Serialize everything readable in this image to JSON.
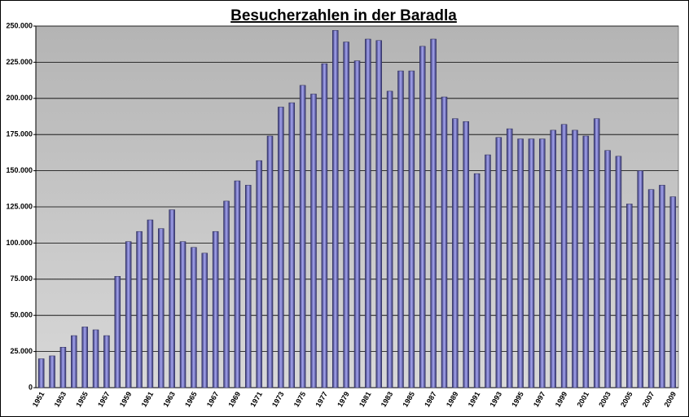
{
  "chart_data": {
    "type": "bar",
    "title": "Besucherzahlen in der Baradla",
    "categories": [
      "1951",
      null,
      "1953",
      null,
      "1955",
      null,
      "1957",
      null,
      "1959",
      null,
      "1961",
      null,
      "1963",
      null,
      "1965",
      null,
      "1967",
      null,
      "1969",
      null,
      "1971",
      null,
      "1973",
      null,
      "1975",
      null,
      "1977",
      null,
      "1979",
      null,
      "1981",
      null,
      "1983",
      null,
      "1985",
      null,
      "1987",
      null,
      "1989",
      null,
      "1991",
      null,
      "1993",
      null,
      "1995",
      null,
      "1997",
      null,
      "1999",
      null,
      "2001",
      null,
      "2003",
      null,
      "2005",
      null,
      "2007",
      null,
      "2009"
    ],
    "values": [
      20000,
      22000,
      28000,
      36000,
      42000,
      40000,
      36000,
      77000,
      101000,
      108000,
      116000,
      110000,
      123000,
      101000,
      97000,
      93000,
      108000,
      129000,
      143000,
      140000,
      157000,
      174000,
      194000,
      197000,
      209000,
      203000,
      224000,
      247000,
      239000,
      226000,
      241000,
      240000,
      205000,
      219000,
      219000,
      236000,
      241000,
      201000,
      186000,
      184000,
      148000,
      161000,
      173000,
      179000,
      172000,
      172000,
      172000,
      178000,
      182000,
      178000,
      174000,
      186000,
      164000,
      160000,
      127000,
      150000,
      137000,
      140000,
      132000
    ],
    "color": "#6b6bc0",
    "ylim": [
      0,
      250000
    ],
    "yticks": [
      0,
      {
        "value": 25000,
        "label": "25.000"
      },
      {
        "value": 50000,
        "label": "50.000"
      },
      {
        "value": 75000,
        "label": "75.000"
      },
      {
        "value": 100000,
        "label": "100.000"
      },
      {
        "value": 125000,
        "label": "125.000"
      },
      {
        "value": 150000,
        "label": "150.000"
      },
      {
        "value": 175000,
        "label": "175.000"
      },
      {
        "value": 200000,
        "label": "200.000"
      },
      {
        "value": 225000,
        "label": "225.000"
      },
      {
        "value": 250000,
        "label": "250.000"
      }
    ],
    "grid": true
  }
}
